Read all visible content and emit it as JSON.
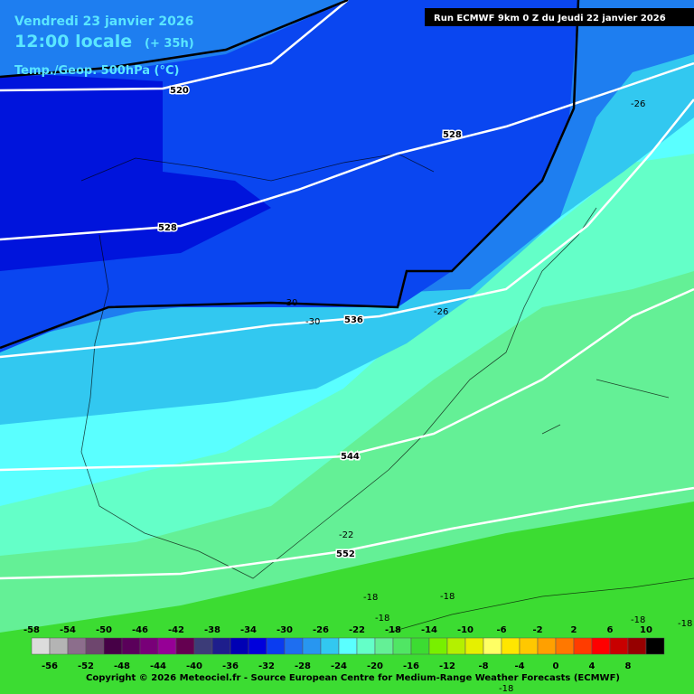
{
  "header": {
    "date": "Vendredi 23 janvier 2026",
    "time": "12:00 locale",
    "lead": "(+ 35h)",
    "field": "Temp./Geop. 500hPa (°C)",
    "run": "Run ECMWF 9km 0 Z du Jeudi 22 janvier 2026"
  },
  "geopotential_labels": [
    "520",
    "528",
    "528",
    "536",
    "544",
    "552"
  ],
  "temperature_labels": [
    "-26",
    "-30",
    "-30",
    "-26",
    "-22",
    "-18",
    "-18",
    "-18",
    "-18",
    "-18",
    "-18"
  ],
  "legend": {
    "top": [
      -58,
      -54,
      -50,
      -46,
      -42,
      -38,
      -34,
      -30,
      -26,
      -22,
      -18,
      -14,
      -10,
      -6,
      -2,
      2,
      6,
      10
    ],
    "bottom": [
      -56,
      -52,
      -48,
      -44,
      -40,
      -36,
      -32,
      -28,
      -24,
      -20,
      -16,
      -12,
      -8,
      -4,
      0,
      4,
      8
    ],
    "colors": [
      "#dcdcdc",
      "#b4b4b4",
      "#8c6e8c",
      "#6e466e",
      "#460046",
      "#5a005a",
      "#780078",
      "#960096",
      "#640050",
      "#3c3c78",
      "#1e1e8c",
      "#0000b4",
      "#0000dc",
      "#0a3cf0",
      "#1e6ef0",
      "#2896f0",
      "#32c8f0",
      "#5affff",
      "#64ffc8",
      "#64f096",
      "#50e664",
      "#3cdc32",
      "#78f000",
      "#b4f000",
      "#e6f000",
      "#ffff64",
      "#ffe600",
      "#ffc800",
      "#ffa000",
      "#ff7800",
      "#ff3c00",
      "#ff0000",
      "#c80000",
      "#960000",
      "#000000"
    ]
  },
  "copyright": "Copyright © 2026 Meteociel.fr - Source European Centre for Medium-Range Weather Forecasts (ECMWF)"
}
